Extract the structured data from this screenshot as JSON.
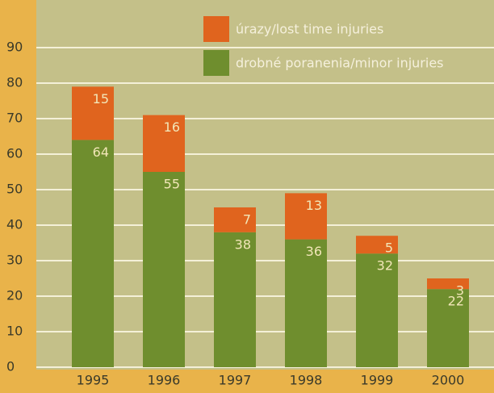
{
  "chart_data": {
    "type": "stacked_bar",
    "categories": [
      "1995",
      "1996",
      "1997",
      "1998",
      "1999",
      "2000"
    ],
    "series": [
      {
        "name": "drobné poranenia/minor injuries",
        "color": "#6f8e2e",
        "values": [
          64,
          55,
          38,
          36,
          32,
          22
        ]
      },
      {
        "name": "úrazy/lost time injuries",
        "color": "#e0641e",
        "values": [
          15,
          16,
          7,
          13,
          5,
          3
        ]
      }
    ],
    "ylim": [
      0,
      100
    ],
    "yticks": [
      0,
      10,
      20,
      30,
      40,
      50,
      60,
      70,
      80,
      90
    ],
    "grid": true
  }
}
